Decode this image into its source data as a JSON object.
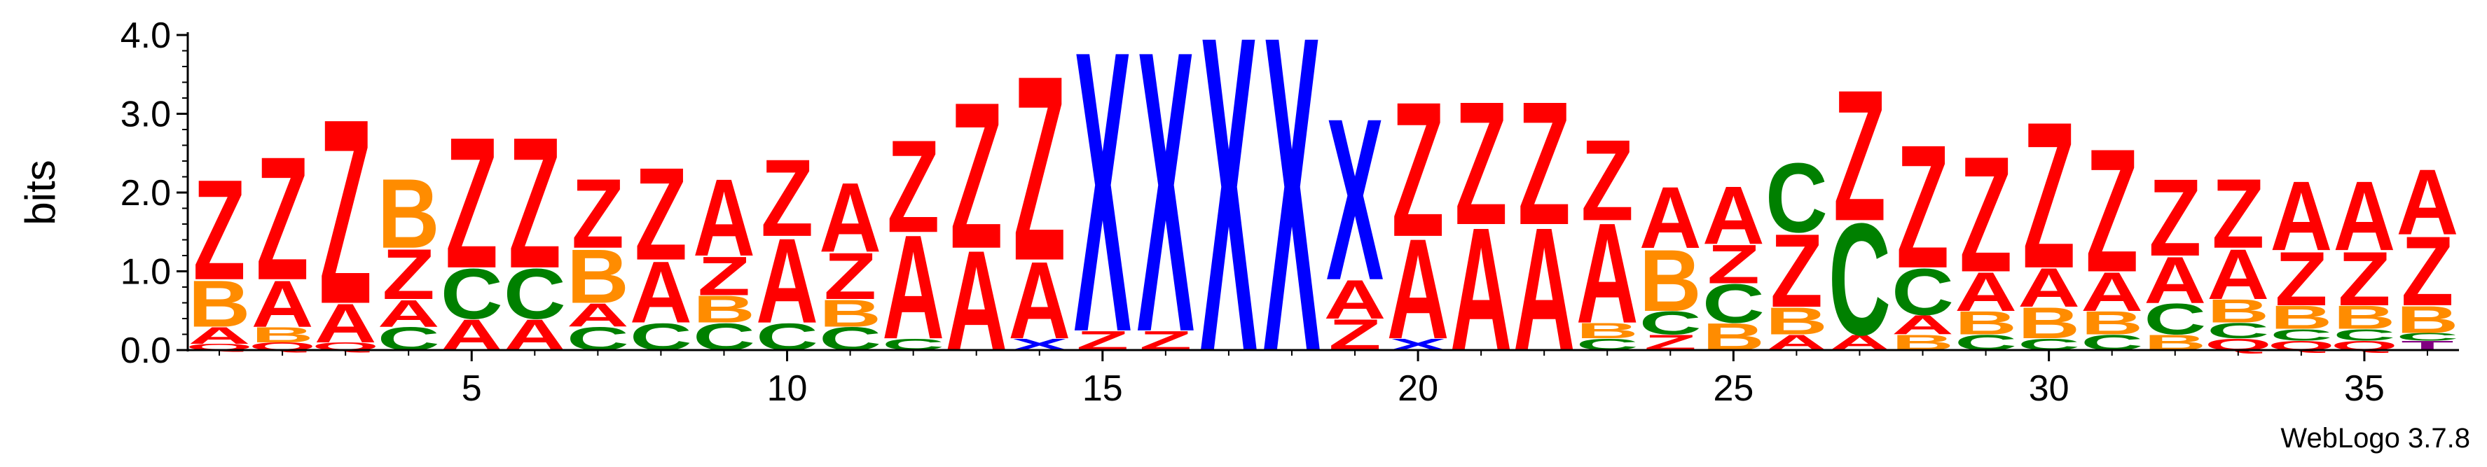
{
  "chart_data": {
    "type": "sequence-logo",
    "ylabel": "bits",
    "ylim": [
      0,
      4.0
    ],
    "yticks": [
      "0.0",
      "1.0",
      "2.0",
      "3.0",
      "4.0"
    ],
    "xticks": [
      5,
      10,
      15,
      20,
      25,
      30,
      35
    ],
    "positions": [
      {
        "pos": 1,
        "letters": [
          [
            "Q",
            0.08
          ],
          [
            "A",
            0.22
          ],
          [
            "B",
            0.6
          ],
          [
            "Z",
            1.3
          ]
        ]
      },
      {
        "pos": 2,
        "letters": [
          [
            "Q",
            0.1
          ],
          [
            "B",
            0.2
          ],
          [
            "A",
            0.6
          ],
          [
            "Z",
            1.6
          ]
        ]
      },
      {
        "pos": 3,
        "letters": [
          [
            "Q",
            0.1
          ],
          [
            "A",
            0.5
          ],
          [
            "Z",
            2.4
          ]
        ]
      },
      {
        "pos": 4,
        "letters": [
          [
            "C",
            0.3
          ],
          [
            "A",
            0.35
          ],
          [
            "Z",
            0.65
          ],
          [
            "B",
            0.9
          ]
        ]
      },
      {
        "pos": 5,
        "letters": [
          [
            "A",
            0.4
          ],
          [
            "C",
            0.65
          ],
          [
            "Z",
            1.7
          ]
        ]
      },
      {
        "pos": 6,
        "letters": [
          [
            "A",
            0.4
          ],
          [
            "C",
            0.65
          ],
          [
            "Z",
            1.7
          ]
        ]
      },
      {
        "pos": 7,
        "letters": [
          [
            "C",
            0.3
          ],
          [
            "A",
            0.3
          ],
          [
            "B",
            0.7
          ],
          [
            "Z",
            0.9
          ]
        ]
      },
      {
        "pos": 8,
        "letters": [
          [
            "C",
            0.35
          ],
          [
            "A",
            0.8
          ],
          [
            "Z",
            1.2
          ]
        ]
      },
      {
        "pos": 9,
        "letters": [
          [
            "C",
            0.35
          ],
          [
            "B",
            0.35
          ],
          [
            "Z",
            0.5
          ],
          [
            "A",
            1.0
          ]
        ]
      },
      {
        "pos": 10,
        "letters": [
          [
            "C",
            0.35
          ],
          [
            "A",
            1.1
          ],
          [
            "Z",
            1.0
          ]
        ]
      },
      {
        "pos": 11,
        "letters": [
          [
            "C",
            0.3
          ],
          [
            "B",
            0.35
          ],
          [
            "Z",
            0.6
          ],
          [
            "A",
            0.9
          ]
        ]
      },
      {
        "pos": 12,
        "letters": [
          [
            "C",
            0.15
          ],
          [
            "A",
            1.35
          ],
          [
            "Z",
            1.2
          ]
        ]
      },
      {
        "pos": 13,
        "letters": [
          [
            "A",
            1.3
          ],
          [
            "Z",
            1.9
          ]
        ]
      },
      {
        "pos": 14,
        "letters": [
          [
            "X",
            0.15
          ],
          [
            "A",
            1.0
          ],
          [
            "Z",
            2.4
          ]
        ]
      },
      {
        "pos": 15,
        "letters": [
          [
            "Z",
            0.25
          ],
          [
            "X",
            3.65
          ]
        ]
      },
      {
        "pos": 16,
        "letters": [
          [
            "Z",
            0.25
          ],
          [
            "X",
            3.65
          ]
        ]
      },
      {
        "pos": 17,
        "letters": [
          [
            "X",
            4.1
          ]
        ]
      },
      {
        "pos": 18,
        "letters": [
          [
            "X",
            4.1
          ]
        ]
      },
      {
        "pos": 19,
        "letters": [
          [
            "Z",
            0.4
          ],
          [
            "A",
            0.5
          ],
          [
            "X",
            2.1
          ]
        ]
      },
      {
        "pos": 20,
        "letters": [
          [
            "X",
            0.15
          ],
          [
            "A",
            1.3
          ],
          [
            "Z",
            1.75
          ]
        ]
      },
      {
        "pos": 21,
        "letters": [
          [
            "A",
            1.6
          ],
          [
            "Z",
            1.6
          ]
        ]
      },
      {
        "pos": 22,
        "letters": [
          [
            "A",
            1.6
          ],
          [
            "Z",
            1.6
          ]
        ]
      },
      {
        "pos": 23,
        "letters": [
          [
            "C",
            0.15
          ],
          [
            "B",
            0.2
          ],
          [
            "A",
            1.3
          ],
          [
            "Z",
            1.05
          ]
        ]
      },
      {
        "pos": 24,
        "letters": [
          [
            "Z",
            0.2
          ],
          [
            "C",
            0.3
          ],
          [
            "B",
            0.8
          ],
          [
            "A",
            0.8
          ]
        ]
      },
      {
        "pos": 25,
        "letters": [
          [
            "B",
            0.35
          ],
          [
            "C",
            0.5
          ],
          [
            "Z",
            0.5
          ],
          [
            "A",
            0.75
          ]
        ]
      },
      {
        "pos": 26,
        "letters": [
          [
            "A",
            0.2
          ],
          [
            "B",
            0.35
          ],
          [
            "Z",
            0.95
          ],
          [
            "C",
            0.9
          ]
        ]
      },
      {
        "pos": 27,
        "letters": [
          [
            "A",
            0.2
          ],
          [
            "C",
            1.45
          ],
          [
            "Z",
            1.7
          ]
        ]
      },
      {
        "pos": 28,
        "letters": [
          [
            "B",
            0.2
          ],
          [
            "A",
            0.25
          ],
          [
            "C",
            0.6
          ],
          [
            "Z",
            1.6
          ]
        ]
      },
      {
        "pos": 29,
        "letters": [
          [
            "C",
            0.2
          ],
          [
            "B",
            0.3
          ],
          [
            "A",
            0.5
          ],
          [
            "Z",
            1.5
          ]
        ]
      },
      {
        "pos": 30,
        "letters": [
          [
            "C",
            0.15
          ],
          [
            "B",
            0.4
          ],
          [
            "A",
            0.5
          ],
          [
            "Z",
            1.9
          ]
        ]
      },
      {
        "pos": 31,
        "letters": [
          [
            "C",
            0.2
          ],
          [
            "B",
            0.3
          ],
          [
            "A",
            0.5
          ],
          [
            "Z",
            1.6
          ]
        ]
      },
      {
        "pos": 32,
        "letters": [
          [
            "B",
            0.2
          ],
          [
            "C",
            0.4
          ],
          [
            "A",
            0.6
          ],
          [
            "Z",
            1.0
          ]
        ]
      },
      {
        "pos": 33,
        "letters": [
          [
            "Q",
            0.15
          ],
          [
            "C",
            0.2
          ],
          [
            "B",
            0.3
          ],
          [
            "A",
            0.65
          ],
          [
            "Z",
            0.9
          ]
        ]
      },
      {
        "pos": 34,
        "letters": [
          [
            "Q",
            0.12
          ],
          [
            "C",
            0.15
          ],
          [
            "B",
            0.3
          ],
          [
            "Z",
            0.7
          ],
          [
            "A",
            0.9
          ]
        ]
      },
      {
        "pos": 35,
        "letters": [
          [
            "Q",
            0.12
          ],
          [
            "C",
            0.15
          ],
          [
            "B",
            0.3
          ],
          [
            "Z",
            0.7
          ],
          [
            "A",
            0.9
          ]
        ]
      },
      {
        "pos": 36,
        "letters": [
          [
            "T",
            0.12
          ],
          [
            "C",
            0.1
          ],
          [
            "B",
            0.35
          ],
          [
            "Z",
            0.9
          ],
          [
            "A",
            0.85
          ]
        ]
      }
    ],
    "colors": {
      "Z": "#ff0000",
      "A": "#ff0000",
      "X": "#0000ff",
      "B": "#ff8c00",
      "C": "#008000",
      "Q": "#ff0000",
      "T": "#800080"
    }
  },
  "credit": "WebLogo 3.7.8"
}
